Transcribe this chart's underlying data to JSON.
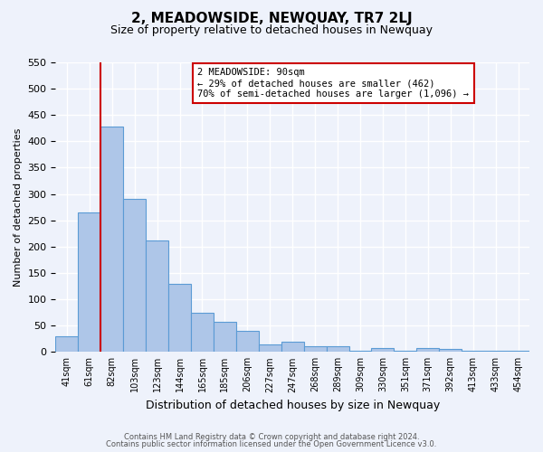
{
  "title": "2, MEADOWSIDE, NEWQUAY, TR7 2LJ",
  "subtitle": "Size of property relative to detached houses in Newquay",
  "xlabel": "Distribution of detached houses by size in Newquay",
  "ylabel": "Number of detached properties",
  "bar_labels": [
    "41sqm",
    "61sqm",
    "82sqm",
    "103sqm",
    "123sqm",
    "144sqm",
    "165sqm",
    "185sqm",
    "206sqm",
    "227sqm",
    "247sqm",
    "268sqm",
    "289sqm",
    "309sqm",
    "330sqm",
    "351sqm",
    "371sqm",
    "392sqm",
    "413sqm",
    "433sqm",
    "454sqm"
  ],
  "bar_values": [
    30,
    265,
    428,
    290,
    212,
    130,
    75,
    58,
    40,
    15,
    20,
    10,
    10,
    2,
    7,
    2,
    7,
    5,
    2,
    2,
    2
  ],
  "bar_color": "#aec6e8",
  "bar_edge_color": "#5b9bd5",
  "vline_x": 2.0,
  "vline_color": "#cc0000",
  "ylim": [
    0,
    550
  ],
  "yticks": [
    0,
    50,
    100,
    150,
    200,
    250,
    300,
    350,
    400,
    450,
    500,
    550
  ],
  "annotation_title": "2 MEADOWSIDE: 90sqm",
  "annotation_line1": "← 29% of detached houses are smaller (462)",
  "annotation_line2": "70% of semi-detached houses are larger (1,096) →",
  "annotation_box_color": "#ffffff",
  "annotation_box_edge": "#cc0000",
  "footer_line1": "Contains HM Land Registry data © Crown copyright and database right 2024.",
  "footer_line2": "Contains public sector information licensed under the Open Government Licence v3.0.",
  "bg_color": "#eef2fb",
  "plot_bg_color": "#eef2fb",
  "grid_color": "#ffffff"
}
